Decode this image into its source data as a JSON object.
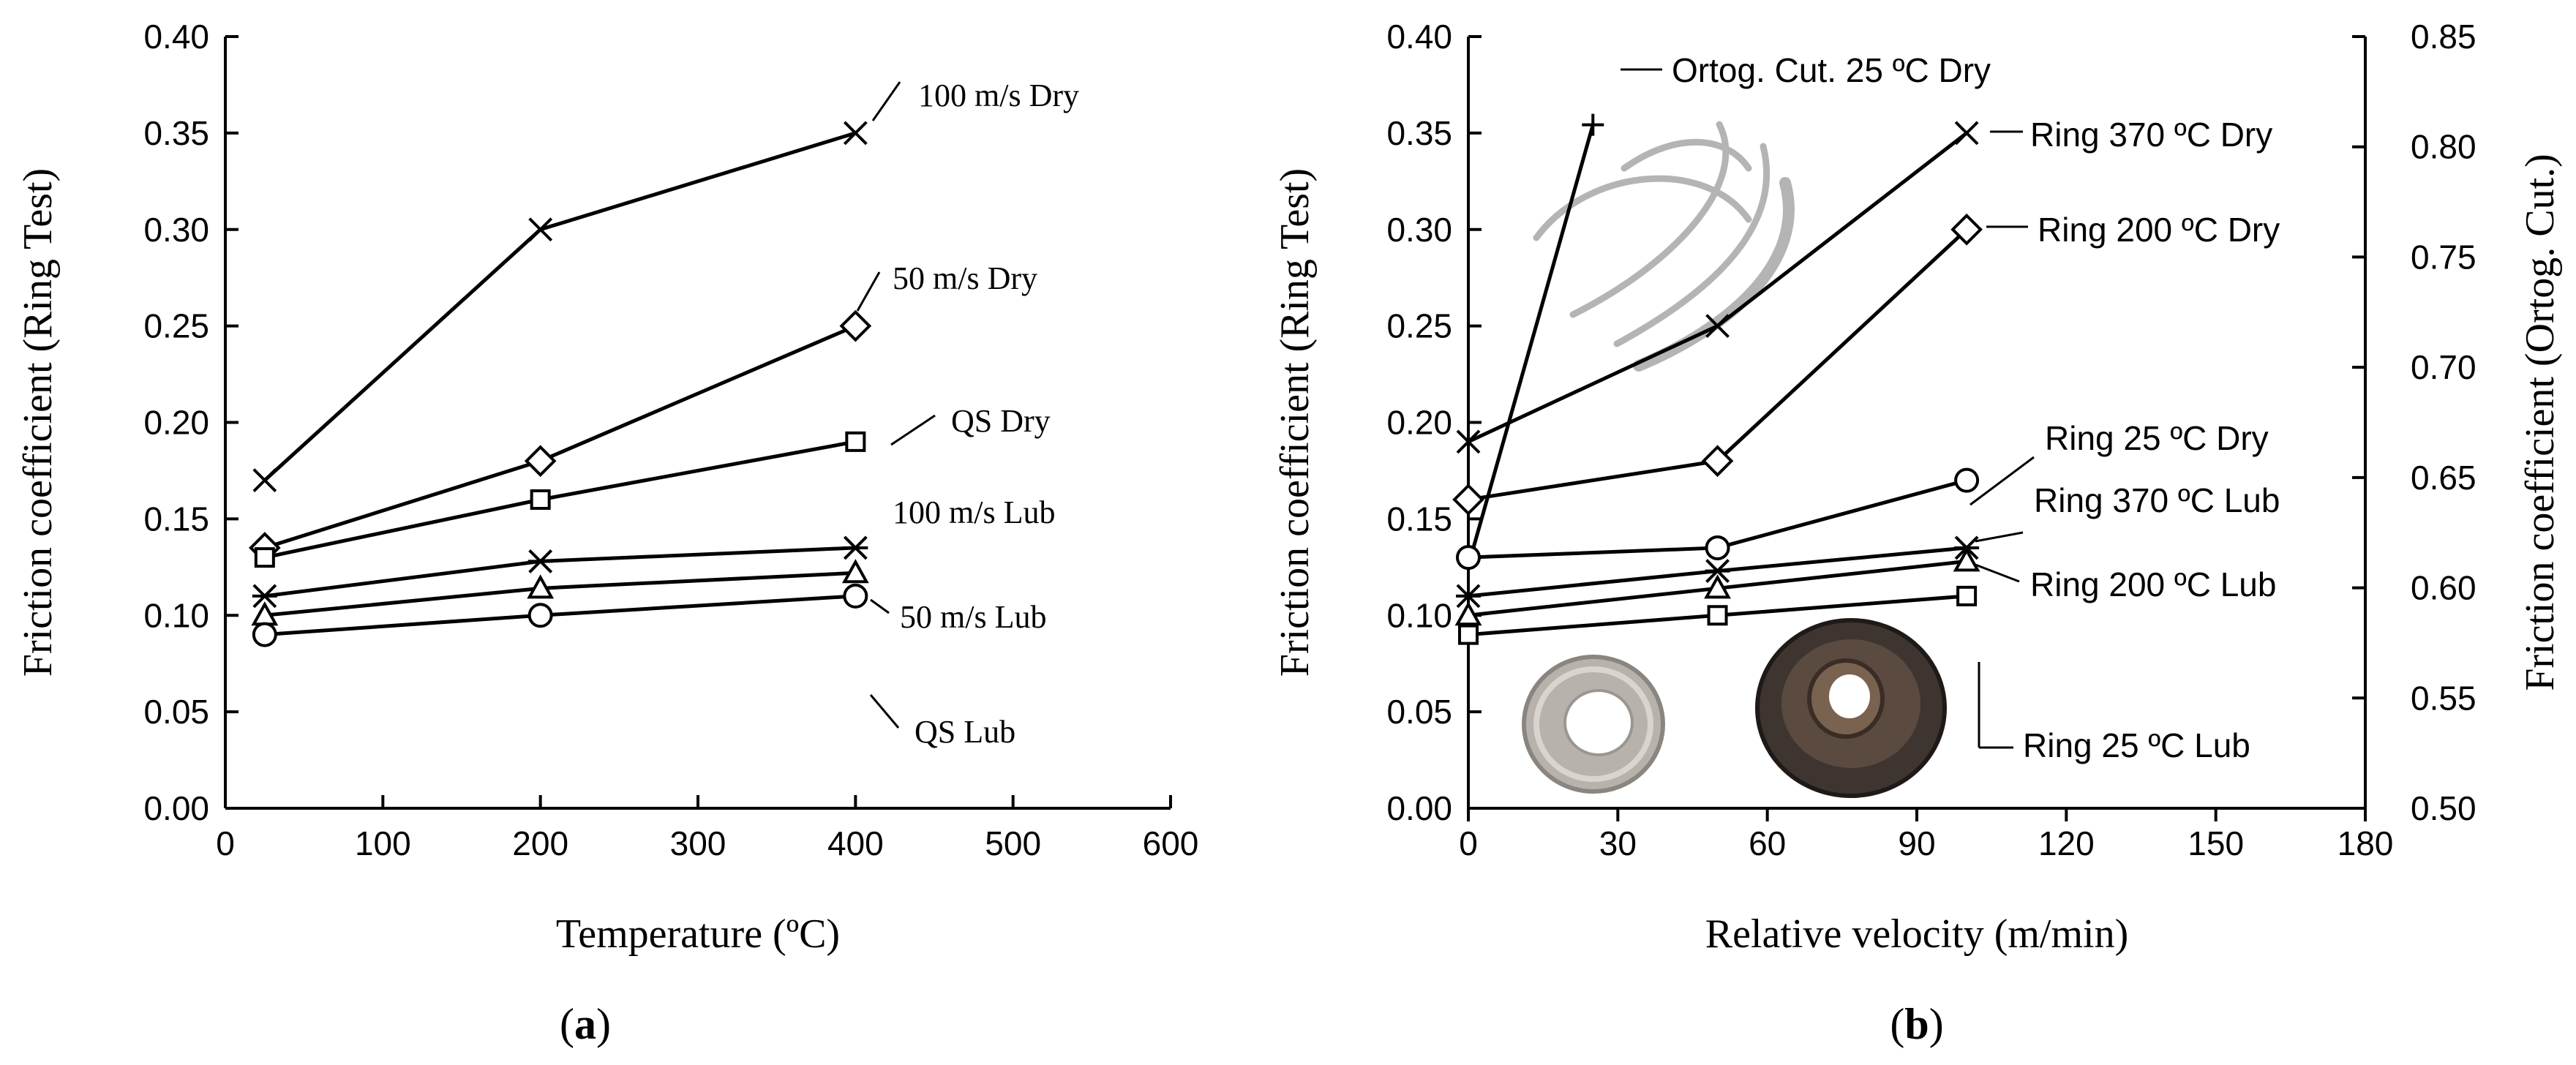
{
  "chart_data": [
    {
      "panel": "a",
      "panel_label": "(a)",
      "panel_label_bold": "a",
      "type": "line",
      "xlabel": "Temperature (ºC)",
      "ylabel": "Friction coefficient (Ring Test)",
      "xlim": [
        0,
        600
      ],
      "ylim": [
        0.0,
        0.4
      ],
      "xticks": [
        "0",
        "100",
        "200",
        "300",
        "400",
        "500",
        "600"
      ],
      "yticks": [
        "0.00",
        "0.05",
        "0.10",
        "0.15",
        "0.20",
        "0.25",
        "0.30",
        "0.35",
        "0.40"
      ],
      "series": [
        {
          "name": "100 m/s Dry",
          "marker": "x",
          "x": [
            25,
            200,
            400
          ],
          "y": [
            0.17,
            0.3,
            0.35
          ]
        },
        {
          "name": "50 m/s Dry",
          "marker": "diamond",
          "x": [
            25,
            200,
            400
          ],
          "y": [
            0.135,
            0.18,
            0.25
          ]
        },
        {
          "name": "QS Dry",
          "marker": "square",
          "x": [
            25,
            200,
            400
          ],
          "y": [
            0.13,
            0.16,
            0.19
          ]
        },
        {
          "name": "100 m/s Lub",
          "marker": "star",
          "x": [
            25,
            200,
            400
          ],
          "y": [
            0.11,
            0.128,
            0.135
          ]
        },
        {
          "name": "50 m/s Lub",
          "marker": "triangle",
          "x": [
            25,
            200,
            400
          ],
          "y": [
            0.1,
            0.114,
            0.122
          ]
        },
        {
          "name": "QS Lub",
          "marker": "circle",
          "x": [
            25,
            200,
            400
          ],
          "y": [
            0.09,
            0.1,
            0.11
          ]
        }
      ]
    },
    {
      "panel": "b",
      "panel_label": "(b)",
      "panel_label_bold": "b",
      "type": "line",
      "xlabel": "Relative velocity (m/min)",
      "ylabel": "Friction coefficient (Ring Test)",
      "y2label": "Friction coefficient (Ortog. Cut.)",
      "xlim": [
        0,
        180
      ],
      "ylim": [
        0.0,
        0.4
      ],
      "y2lim": [
        0.5,
        0.85
      ],
      "xticks": [
        "0",
        "30",
        "60",
        "90",
        "120",
        "150",
        "180"
      ],
      "yticks": [
        "0.00",
        "0.05",
        "0.10",
        "0.15",
        "0.20",
        "0.25",
        "0.30",
        "0.35",
        "0.40"
      ],
      "y2ticks": [
        "0.50",
        "0.55",
        "0.60",
        "0.65",
        "0.70",
        "0.75",
        "0.80",
        "0.85"
      ],
      "series": [
        {
          "name": "Ortog. Cut. 25 ºC Dry",
          "marker": "plus",
          "axis": "y2",
          "x": [
            0,
            25
          ],
          "y": [
            0.61,
            0.81
          ]
        },
        {
          "name": "Ring 370 ºC Dry",
          "marker": "x",
          "axis": "y",
          "x": [
            0,
            50,
            100
          ],
          "y": [
            0.19,
            0.25,
            0.35
          ]
        },
        {
          "name": "Ring 200 ºC Dry",
          "marker": "diamond",
          "axis": "y",
          "x": [
            0,
            50,
            100
          ],
          "y": [
            0.16,
            0.18,
            0.3
          ]
        },
        {
          "name": "Ring 25 ºC Dry",
          "marker": "circle",
          "axis": "y",
          "x": [
            0,
            50,
            100
          ],
          "y": [
            0.13,
            0.135,
            0.17
          ]
        },
        {
          "name": "Ring 370 ºC Lub",
          "marker": "star",
          "axis": "y",
          "x": [
            0,
            50,
            100
          ],
          "y": [
            0.11,
            0.123,
            0.135
          ]
        },
        {
          "name": "Ring 200 ºC Lub",
          "marker": "triangle",
          "axis": "y",
          "x": [
            0,
            50,
            100
          ],
          "y": [
            0.1,
            0.114,
            0.128
          ]
        },
        {
          "name": "Ring 25 ºC Lub",
          "marker": "square",
          "axis": "y",
          "x": [
            0,
            50,
            100
          ],
          "y": [
            0.09,
            0.1,
            0.11
          ]
        }
      ]
    }
  ]
}
